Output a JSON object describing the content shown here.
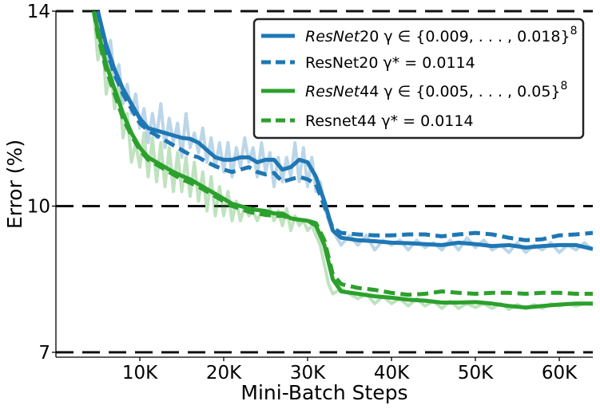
{
  "chart_data": {
    "type": "line",
    "xlabel": "Mini-Batch Steps",
    "ylabel": "Error (%)",
    "xlim": [
      0,
      64000
    ],
    "ylim": [
      6.9,
      14
    ],
    "x_ticks": [
      10000,
      20000,
      30000,
      40000,
      50000,
      60000
    ],
    "x_tick_labels": [
      "10K",
      "20K",
      "30K",
      "40K",
      "50K",
      "60K"
    ],
    "y_ticks": [
      7,
      10,
      14
    ],
    "y_tick_labels": [
      "7",
      "10",
      "14"
    ],
    "grid": "horizontal dashed at y ticks",
    "legend_position": "top-right",
    "legend": [
      {
        "italic": "ResNet",
        "text": "20 γ ∈ {0.009, . . . , 0.018}",
        "sup": "8"
      },
      {
        "italic": "",
        "text": "ResNet20 γ* = 0.0114",
        "sup": ""
      },
      {
        "italic": "ResNet",
        "text": "44 γ ∈ {0.005, . . . , 0.05}",
        "sup": "8"
      },
      {
        "italic": "",
        "text": "Resnet44 γ* = 0.0114",
        "sup": ""
      }
    ],
    "series": [
      {
        "color": "#1f77b4",
        "style": "solid",
        "x": [
          5000,
          6000,
          7000,
          8000,
          9000,
          10000,
          11000,
          12000,
          13000,
          14000,
          15000,
          16000,
          17000,
          18000,
          19000,
          20000,
          21000,
          22000,
          23000,
          24000,
          25000,
          26000,
          27000,
          28000,
          29000,
          30000,
          31000,
          32000,
          33000,
          34000,
          36000,
          38000,
          40000,
          42000,
          44000,
          46000,
          48000,
          50000,
          52000,
          54000,
          56000,
          58000,
          60000,
          62000,
          64000
        ],
        "values": [
          14.0,
          13.3,
          12.8,
          12.4,
          12.1,
          11.8,
          11.6,
          11.55,
          11.5,
          11.45,
          11.4,
          11.38,
          11.3,
          11.15,
          11.0,
          10.95,
          10.95,
          11.0,
          11.0,
          10.9,
          10.95,
          10.95,
          10.75,
          10.8,
          10.95,
          10.9,
          10.6,
          10.1,
          9.5,
          9.35,
          9.3,
          9.28,
          9.25,
          9.24,
          9.22,
          9.2,
          9.25,
          9.22,
          9.18,
          9.2,
          9.15,
          9.18,
          9.2,
          9.2,
          9.12
        ]
      },
      {
        "color": "#1f77b4",
        "style": "dashed",
        "x": [
          5000,
          6000,
          7000,
          8000,
          9000,
          10000,
          11000,
          12000,
          13000,
          14000,
          15000,
          16000,
          17000,
          18000,
          19000,
          20000,
          21000,
          22000,
          23000,
          24000,
          25000,
          26000,
          27000,
          28000,
          29000,
          30000,
          31000,
          32000,
          33000,
          34000,
          36000,
          38000,
          40000,
          42000,
          44000,
          46000,
          48000,
          50000,
          52000,
          54000,
          56000,
          58000,
          60000,
          62000,
          64000
        ],
        "values": [
          14.0,
          13.2,
          12.7,
          12.3,
          12.0,
          11.7,
          11.55,
          11.45,
          11.35,
          11.25,
          11.15,
          11.05,
          11.0,
          10.9,
          10.82,
          10.75,
          10.7,
          10.75,
          10.8,
          10.7,
          10.65,
          10.68,
          10.5,
          10.55,
          10.6,
          10.55,
          10.45,
          10.0,
          9.55,
          9.45,
          9.42,
          9.4,
          9.4,
          9.42,
          9.42,
          9.38,
          9.42,
          9.45,
          9.42,
          9.35,
          9.3,
          9.32,
          9.4,
          9.42,
          9.45
        ]
      },
      {
        "color": "#2ca02c",
        "style": "solid",
        "x": [
          4500,
          5000,
          6000,
          7000,
          8000,
          9000,
          10000,
          11000,
          12000,
          13000,
          14000,
          15000,
          16000,
          17000,
          18000,
          19000,
          20000,
          21000,
          22000,
          23000,
          24000,
          25000,
          26000,
          27000,
          28000,
          29000,
          30000,
          31000,
          32000,
          33000,
          34000,
          36000,
          38000,
          40000,
          42000,
          44000,
          46000,
          48000,
          50000,
          52000,
          54000,
          56000,
          58000,
          60000,
          62000,
          64000
        ],
        "values": [
          14.0,
          13.6,
          12.9,
          12.4,
          11.9,
          11.5,
          11.2,
          11.0,
          10.9,
          10.8,
          10.7,
          10.62,
          10.55,
          10.45,
          10.35,
          10.25,
          10.15,
          10.05,
          10.0,
          9.95,
          9.92,
          9.9,
          9.85,
          9.85,
          9.75,
          9.72,
          9.7,
          9.6,
          9.2,
          8.5,
          8.25,
          8.2,
          8.15,
          8.12,
          8.08,
          8.06,
          8.02,
          8.02,
          8.03,
          8.0,
          7.95,
          7.92,
          7.95,
          7.98,
          8.0,
          8.0
        ]
      },
      {
        "color": "#2ca02c",
        "style": "dashed",
        "x": [
          4500,
          5000,
          6000,
          7000,
          8000,
          9000,
          10000,
          11000,
          12000,
          13000,
          14000,
          15000,
          16000,
          17000,
          18000,
          19000,
          20000,
          21000,
          22000,
          23000,
          24000,
          25000,
          26000,
          27000,
          28000,
          29000,
          30000,
          31000,
          32000,
          33000,
          34000,
          36000,
          38000,
          40000,
          42000,
          44000,
          46000,
          48000,
          50000,
          52000,
          54000,
          56000,
          58000,
          60000,
          62000,
          64000
        ],
        "values": [
          14.0,
          13.5,
          12.8,
          12.3,
          11.8,
          11.45,
          11.15,
          10.95,
          10.85,
          10.75,
          10.65,
          10.55,
          10.48,
          10.4,
          10.3,
          10.2,
          10.1,
          10.0,
          9.95,
          9.88,
          9.85,
          9.82,
          9.8,
          9.8,
          9.75,
          9.72,
          9.7,
          9.65,
          9.3,
          8.6,
          8.4,
          8.32,
          8.28,
          8.22,
          8.18,
          8.2,
          8.25,
          8.22,
          8.2,
          8.22,
          8.22,
          8.2,
          8.22,
          8.22,
          8.2,
          8.2
        ]
      }
    ],
    "noisy_series": [
      {
        "color": "#1f77b4",
        "x": [
          5000,
          5500,
          6000,
          6500,
          7000,
          7500,
          8000,
          8500,
          9000,
          9500,
          10000,
          10500,
          11000,
          11500,
          12000,
          12500,
          13000,
          13500,
          14000,
          14500,
          15000,
          15500,
          16000,
          16500,
          17000,
          17500,
          18000,
          18500,
          19000,
          19500,
          20000,
          20500,
          21000,
          21500,
          22000,
          22500,
          23000,
          23500,
          24000,
          24500,
          25000,
          25500,
          26000,
          26500,
          27000,
          27500,
          28000,
          28500,
          29000,
          29500,
          30000,
          30500,
          31000,
          31500,
          32000,
          32500,
          33000,
          34000,
          35000,
          36000,
          37000,
          38000,
          39000,
          40000,
          41000,
          42000,
          43000,
          44000,
          45000,
          46000,
          47000,
          48000,
          49000,
          50000,
          51000,
          52000,
          53000,
          54000,
          55000,
          56000,
          57000,
          58000,
          59000,
          60000,
          61000,
          62000,
          63000,
          64000
        ],
        "values": [
          14.0,
          13.1,
          12.9,
          13.4,
          12.6,
          12.9,
          12.1,
          12.5,
          11.9,
          12.3,
          11.6,
          12.0,
          11.3,
          11.9,
          11.4,
          12.1,
          11.2,
          11.8,
          11.3,
          11.7,
          11.0,
          11.9,
          11.2,
          11.5,
          11.1,
          11.6,
          10.9,
          11.4,
          10.8,
          11.3,
          10.7,
          11.3,
          10.6,
          11.2,
          10.8,
          11.4,
          10.9,
          11.2,
          10.6,
          11.3,
          10.7,
          11.1,
          10.4,
          11.0,
          10.5,
          11.0,
          10.6,
          11.3,
          10.5,
          11.2,
          10.4,
          11.0,
          10.3,
          10.5,
          10.0,
          9.7,
          9.5,
          9.2,
          9.4,
          9.2,
          9.4,
          9.1,
          9.3,
          9.2,
          9.3,
          9.1,
          9.3,
          9.15,
          9.25,
          9.1,
          9.3,
          9.1,
          9.35,
          9.15,
          9.3,
          9.1,
          9.2,
          9.05,
          9.25,
          9.05,
          9.2,
          9.1,
          9.25,
          9.05,
          9.2,
          9.1,
          9.25,
          9.1
        ]
      },
      {
        "color": "#2ca02c",
        "x": [
          4500,
          5000,
          5500,
          6000,
          6500,
          7000,
          7500,
          8000,
          8500,
          9000,
          9500,
          10000,
          10500,
          11000,
          11500,
          12000,
          12500,
          13000,
          13500,
          14000,
          14500,
          15000,
          15500,
          16000,
          16500,
          17000,
          17500,
          18000,
          18500,
          19000,
          19500,
          20000,
          20500,
          21000,
          21500,
          22000,
          22500,
          23000,
          23500,
          24000,
          24500,
          25000,
          25500,
          26000,
          26500,
          27000,
          27500,
          28000,
          28500,
          29000,
          29500,
          30000,
          30500,
          31000,
          31500,
          32000,
          32500,
          33000,
          34000,
          35000,
          36000,
          37000,
          38000,
          39000,
          40000,
          41000,
          42000,
          43000,
          44000,
          45000,
          46000,
          47000,
          48000,
          49000,
          50000,
          51000,
          52000,
          53000,
          54000,
          55000,
          56000,
          57000,
          58000,
          59000,
          60000,
          61000,
          62000,
          63000,
          64000
        ],
        "values": [
          14.0,
          13.0,
          13.5,
          12.3,
          12.8,
          12.0,
          12.5,
          11.4,
          11.9,
          10.9,
          11.3,
          10.8,
          11.5,
          10.6,
          11.4,
          10.5,
          11.3,
          10.4,
          11.2,
          10.3,
          11.1,
          10.3,
          11.0,
          10.2,
          10.9,
          10.1,
          10.7,
          9.9,
          10.6,
          9.8,
          10.4,
          9.8,
          10.3,
          9.7,
          10.1,
          9.7,
          10.0,
          9.8,
          9.9,
          9.7,
          9.9,
          9.8,
          9.95,
          9.7,
          9.9,
          9.6,
          9.95,
          9.5,
          9.8,
          9.6,
          9.7,
          9.5,
          9.6,
          9.4,
          9.2,
          8.8,
          8.4,
          8.2,
          8.3,
          8.2,
          8.1,
          8.2,
          8.0,
          8.15,
          8.0,
          8.1,
          7.95,
          8.1,
          7.95,
          8.05,
          7.9,
          8.05,
          7.9,
          8.0,
          7.92,
          8.0,
          7.9,
          8.0,
          7.88,
          7.98,
          7.9,
          7.98,
          7.9,
          8.0,
          7.95,
          8.0,
          7.95,
          8.0,
          7.98
        ]
      }
    ]
  }
}
